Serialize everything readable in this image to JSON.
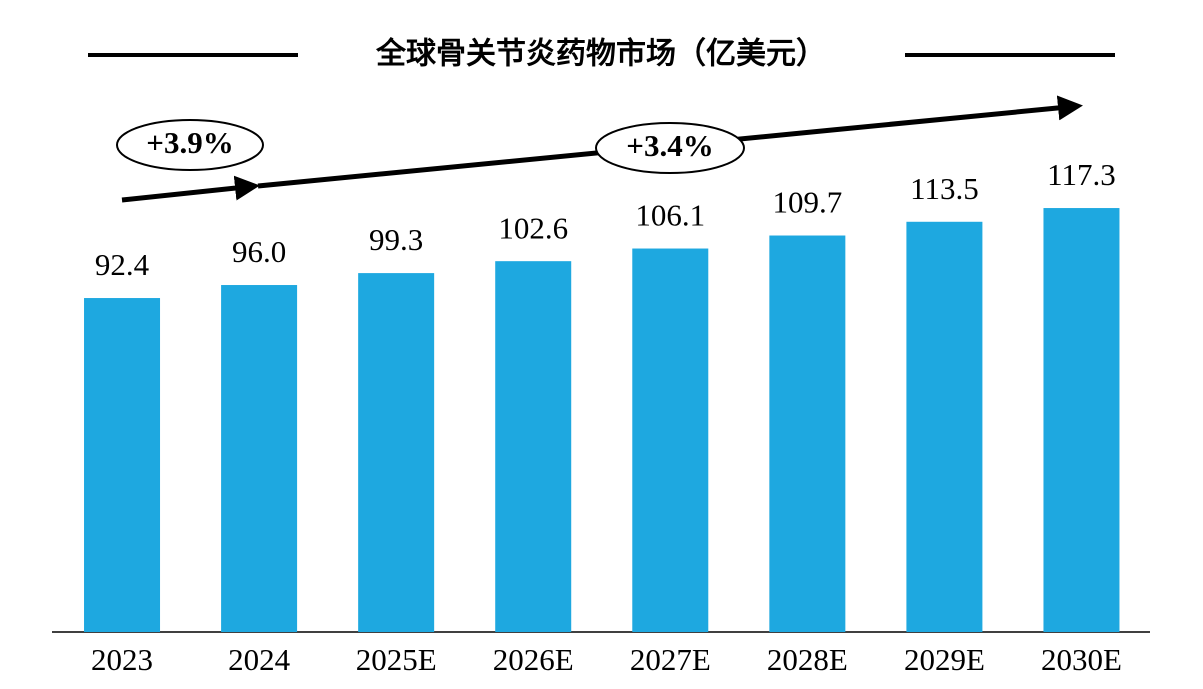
{
  "chart_data": {
    "type": "bar",
    "title": "全球骨关节炎药物市场（亿美元）",
    "categories": [
      "2023",
      "2024",
      "2025E",
      "2026E",
      "2027E",
      "2028E",
      "2029E",
      "2030E"
    ],
    "values": [
      92.4,
      96.0,
      99.3,
      102.6,
      106.1,
      109.7,
      113.5,
      117.3
    ],
    "value_labels": [
      "92.4",
      "96.0",
      "99.3",
      "102.6",
      "106.1",
      "109.7",
      "113.5",
      "117.3"
    ],
    "color": "#1ea8e0",
    "ylim": [
      0,
      140
    ],
    "annotations": [
      "+3.9%",
      "+3.4%"
    ]
  }
}
